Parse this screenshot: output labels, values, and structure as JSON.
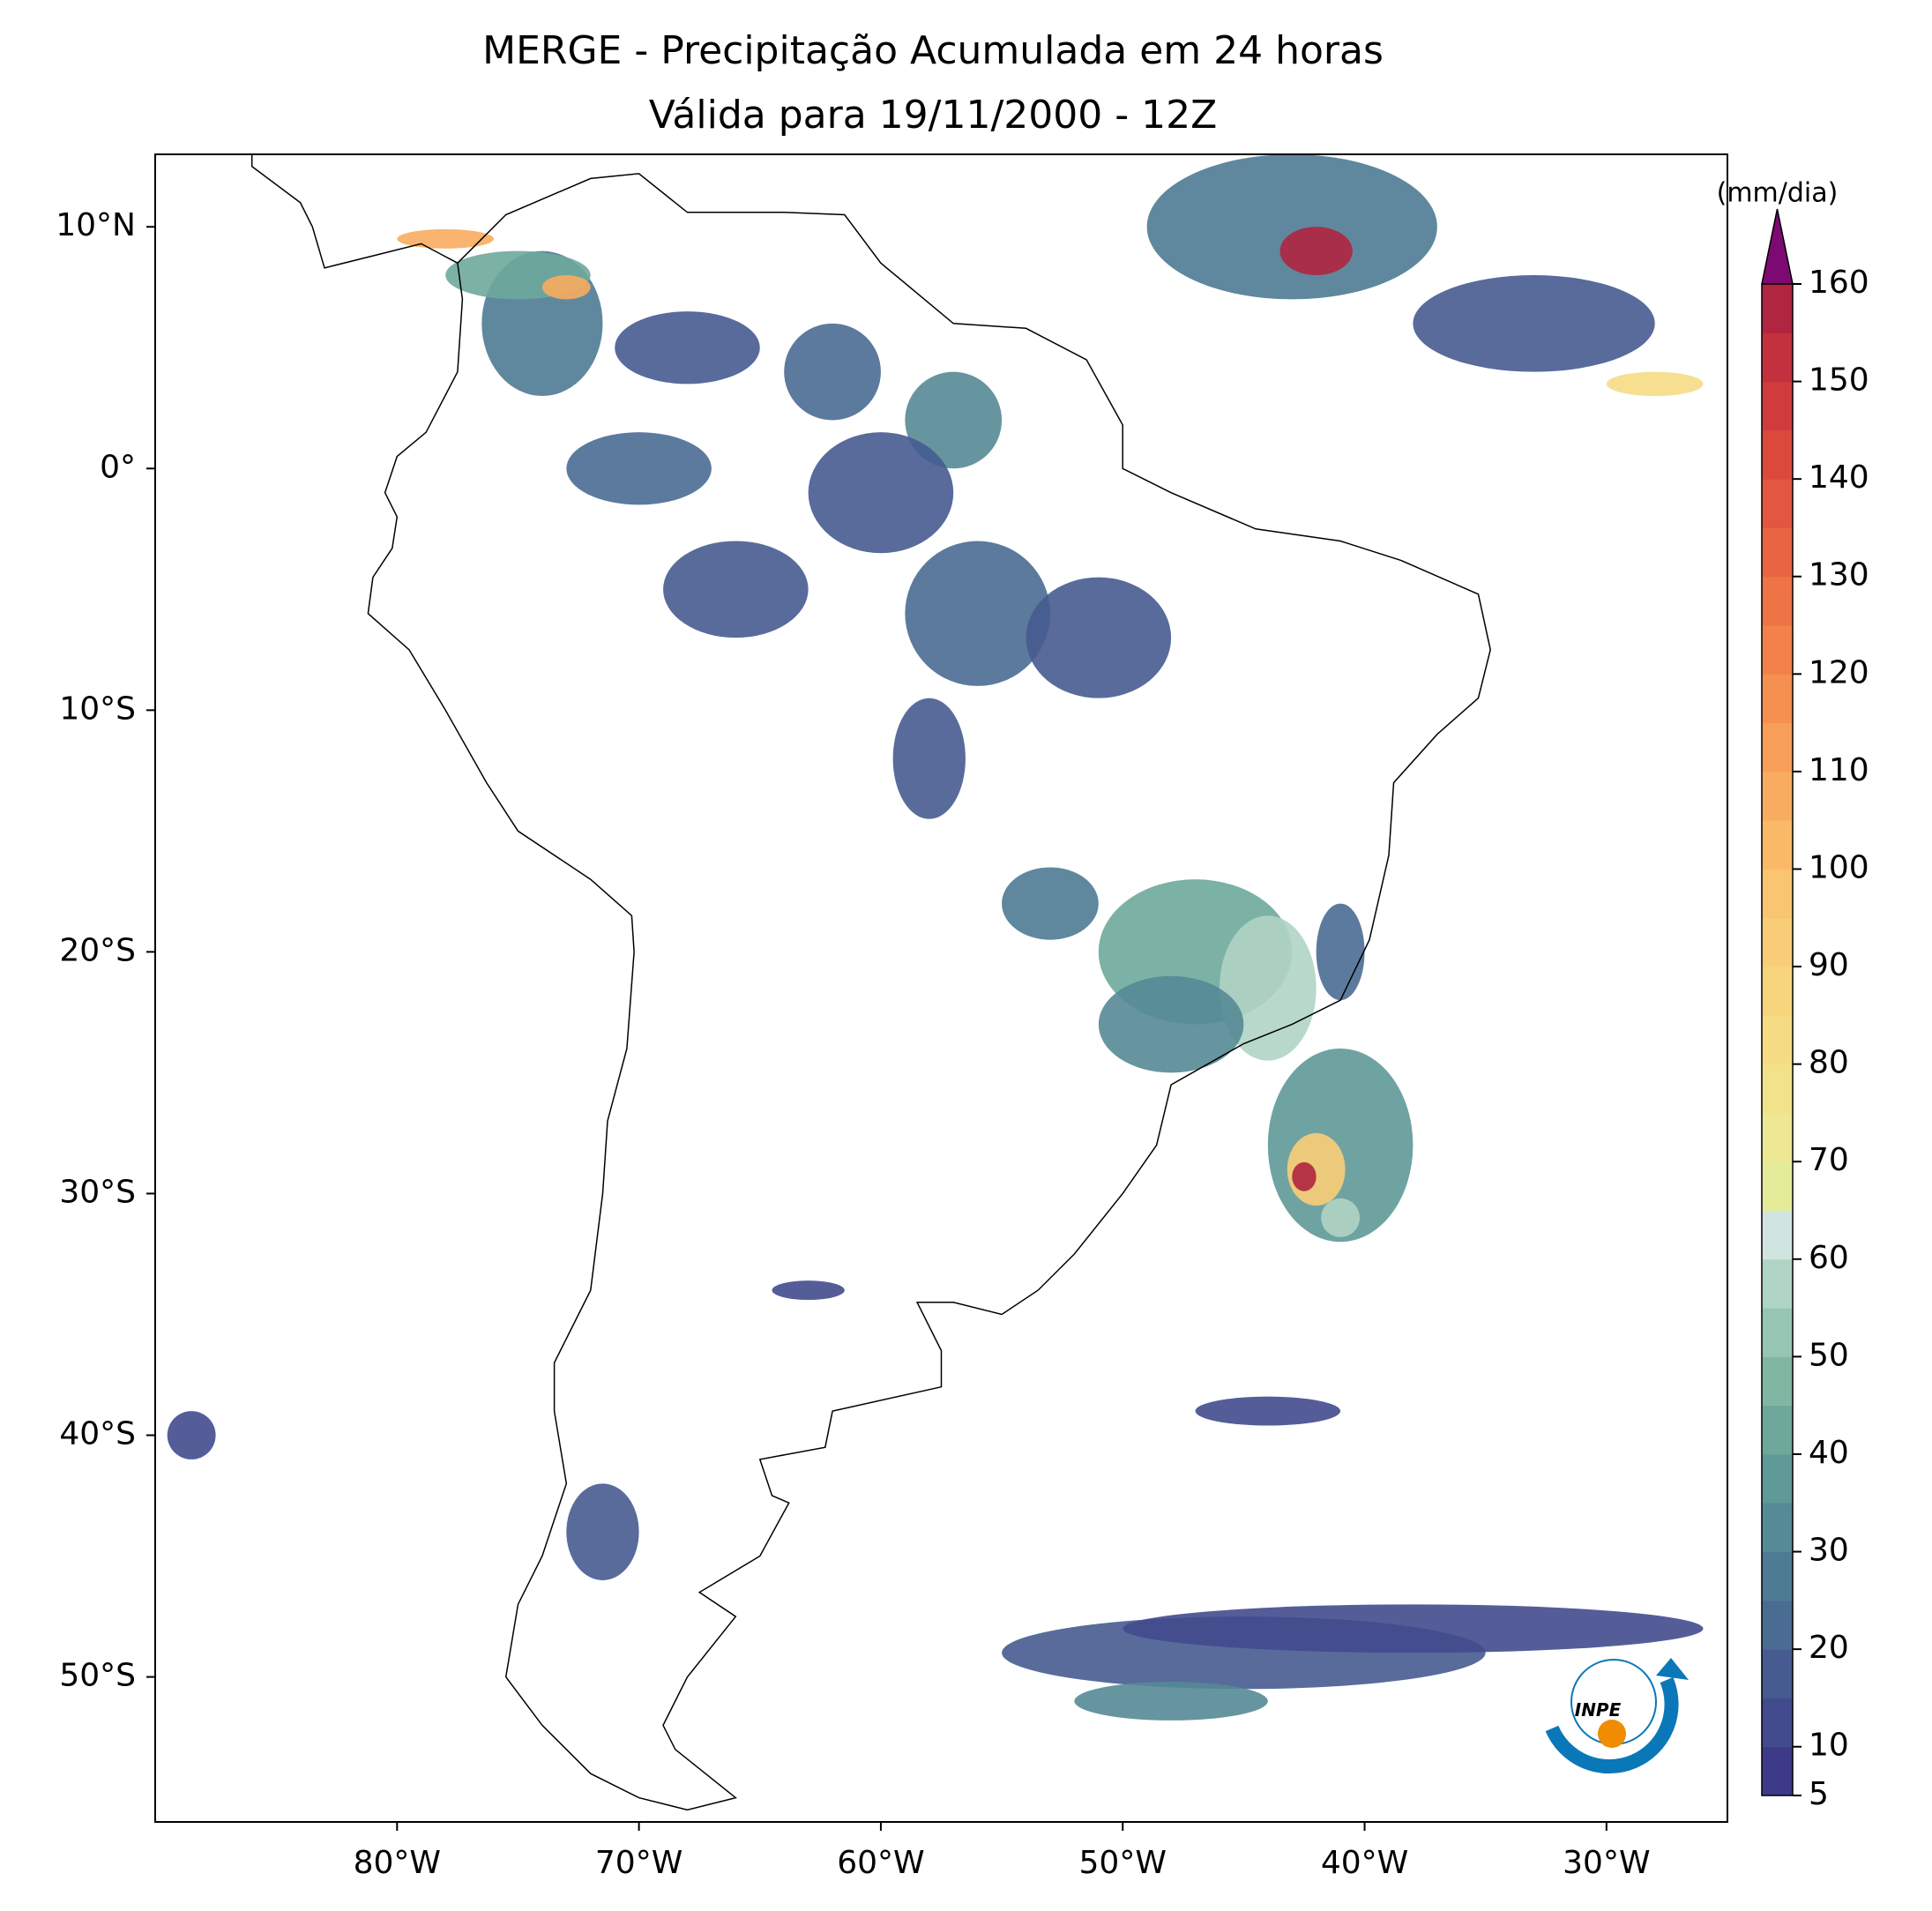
{
  "chart_data": {
    "type": "map",
    "title": "MERGE - Precipitação Acumulada em 24 horas",
    "subtitle": "Válida para 19/11/2000 - 12Z",
    "xlim": [
      -90,
      -25
    ],
    "ylim": [
      -56,
      13
    ],
    "xticks": [
      {
        "value": -80,
        "label": "80°W"
      },
      {
        "value": -70,
        "label": "70°W"
      },
      {
        "value": -60,
        "label": "60°W"
      },
      {
        "value": -50,
        "label": "50°W"
      },
      {
        "value": -40,
        "label": "40°W"
      },
      {
        "value": -30,
        "label": "30°W"
      }
    ],
    "yticks": [
      {
        "value": 10,
        "label": "10°N"
      },
      {
        "value": 0,
        "label": "0°"
      },
      {
        "value": -10,
        "label": "10°S"
      },
      {
        "value": -20,
        "label": "20°S"
      },
      {
        "value": -30,
        "label": "30°S"
      },
      {
        "value": -40,
        "label": "40°S"
      },
      {
        "value": -50,
        "label": "50°S"
      }
    ],
    "colorbar": {
      "label": "(mm/dia)",
      "lim": [
        5,
        160
      ],
      "ticks": [
        5,
        10,
        20,
        30,
        40,
        50,
        60,
        70,
        80,
        90,
        100,
        110,
        120,
        130,
        140,
        150,
        160
      ],
      "colors": [
        "#3d3a8a",
        "#424b8e",
        "#465b90",
        "#4a6b92",
        "#4e7b94",
        "#558a96",
        "#5f9998",
        "#6ea89b",
        "#80b7a3",
        "#96c5b1",
        "#b0d4c4",
        "#d0e5e0",
        "#e4ec99",
        "#eee894",
        "#f2e38b",
        "#f5dc84",
        "#f7d57d",
        "#f9cd77",
        "#fac570",
        "#f9b967",
        "#f8ac5f",
        "#f79f58",
        "#f59050",
        "#f2824a",
        "#ee7345",
        "#e96442",
        "#e3563f",
        "#db493d",
        "#d03c3d",
        "#c3303e",
        "#b0253f"
      ],
      "over_color": "#7d0a72"
    }
  },
  "logo": {
    "text": "INPE"
  }
}
